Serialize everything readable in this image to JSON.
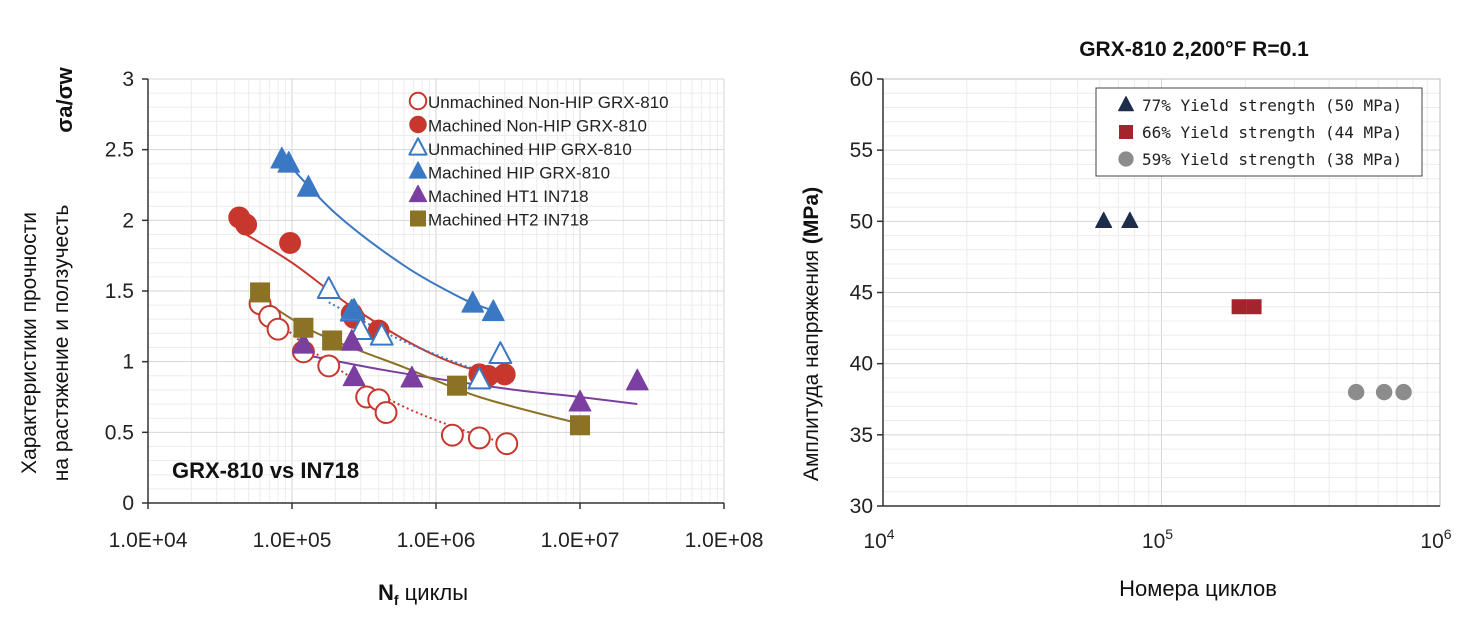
{
  "chart_data": [
    {
      "type": "scatter",
      "title": "",
      "annotation": "GRX-810 vs IN718",
      "ylabel_symbol": "σa/σw",
      "ylabel_line1": "Характеристики прочности",
      "ylabel_line2": "на растяжение и ползучесть",
      "xlabel": "Nf циклы",
      "xlabel_main": "N",
      "xlabel_sub": "f",
      "xlabel_rest": " циклы",
      "x_scale": "log",
      "xlim": [
        10000,
        100000000
      ],
      "ylim": [
        0,
        3
      ],
      "x_ticks": [
        "1.0E+04",
        "1.0E+05",
        "1.0E+06",
        "1.0E+07",
        "1.0E+08"
      ],
      "y_ticks": [
        "0",
        "0.5",
        "1",
        "1.5",
        "2",
        "2.5",
        "3"
      ],
      "grid": true,
      "legend_position": "top-right",
      "series": [
        {
          "name": "Unmachined Non-HIP GRX-810",
          "marker": "circle-open",
          "color": "#c8372d",
          "fit_style": "dotted",
          "points": [
            [
              60000,
              1.41
            ],
            [
              70000,
              1.32
            ],
            [
              80000,
              1.23
            ],
            [
              120000,
              1.07
            ],
            [
              180000,
              0.97
            ],
            [
              330000,
              0.75
            ],
            [
              400000,
              0.73
            ],
            [
              450000,
              0.64
            ],
            [
              1300000,
              0.48
            ],
            [
              2000000,
              0.46
            ],
            [
              3100000,
              0.42
            ]
          ],
          "fit": [
            [
              60000,
              1.4
            ],
            [
              150000,
              1.05
            ],
            [
              500000,
              0.72
            ],
            [
              1500000,
              0.52
            ],
            [
              3100000,
              0.42
            ]
          ]
        },
        {
          "name": "Machined Non-HIP GRX-810",
          "marker": "circle-filled",
          "color": "#c8372d",
          "fit_style": "solid",
          "points": [
            [
              43000,
              2.02
            ],
            [
              48000,
              1.97
            ],
            [
              97000,
              1.84
            ],
            [
              260000,
              1.34
            ],
            [
              270000,
              1.31
            ],
            [
              400000,
              1.22
            ],
            [
              2000000,
              0.91
            ],
            [
              2300000,
              0.9
            ],
            [
              3000000,
              0.91
            ]
          ],
          "fit": [
            [
              48000,
              1.9
            ],
            [
              100000,
              1.7
            ],
            [
              250000,
              1.4
            ],
            [
              700000,
              1.12
            ],
            [
              1500000,
              0.97
            ],
            [
              3000000,
              0.9
            ]
          ]
        },
        {
          "name": "Unmachined HIP GRX-810",
          "marker": "triangle-open",
          "color": "#3a78c3",
          "fit_style": "dotted",
          "points": [
            [
              180000,
              1.51
            ],
            [
              260000,
              1.35
            ],
            [
              300000,
              1.22
            ],
            [
              420000,
              1.18
            ],
            [
              2000000,
              0.87
            ],
            [
              2800000,
              1.05
            ]
          ],
          "fit": [
            [
              180000,
              1.42
            ],
            [
              500000,
              1.18
            ],
            [
              1500000,
              0.98
            ],
            [
              2800000,
              0.9
            ]
          ]
        },
        {
          "name": "Machined HIP GRX-810",
          "marker": "triangle-filled",
          "color": "#3a78c3",
          "fit_style": "solid",
          "points": [
            [
              85000,
              2.43
            ],
            [
              95000,
              2.4
            ],
            [
              130000,
              2.23
            ],
            [
              270000,
              1.36
            ],
            [
              1800000,
              1.41
            ],
            [
              2500000,
              1.35
            ]
          ],
          "fit": [
            [
              85000,
              2.45
            ],
            [
              200000,
              2.05
            ],
            [
              600000,
              1.68
            ],
            [
              1500000,
              1.45
            ],
            [
              2500000,
              1.36
            ]
          ]
        },
        {
          "name": "Machined HT1 IN718",
          "marker": "triangle-filled",
          "color": "#7a3fa0",
          "fit_style": "solid",
          "points": [
            [
              120000,
              1.12
            ],
            [
              260000,
              1.14
            ],
            [
              270000,
              0.89
            ],
            [
              680000,
              0.88
            ],
            [
              10000000,
              0.71
            ],
            [
              25000000,
              0.86
            ]
          ],
          "fit": [
            [
              120000,
              1.05
            ],
            [
              500000,
              0.93
            ],
            [
              3000000,
              0.81
            ],
            [
              10000000,
              0.75
            ],
            [
              25000000,
              0.7
            ]
          ]
        },
        {
          "name": "Machined HT2 IN718",
          "marker": "square-filled",
          "color": "#8b7225",
          "fit_style": "solid",
          "points": [
            [
              60000,
              1.49
            ],
            [
              120000,
              1.24
            ],
            [
              190000,
              1.15
            ],
            [
              1400000,
              0.83
            ],
            [
              10000000,
              0.55
            ]
          ],
          "fit": [
            [
              60000,
              1.45
            ],
            [
              150000,
              1.2
            ],
            [
              600000,
              0.96
            ],
            [
              2000000,
              0.75
            ],
            [
              10000000,
              0.56
            ]
          ]
        }
      ]
    },
    {
      "type": "scatter",
      "title": "GRX-810 2,200°F R=0.1",
      "ylabel": "Амплитуда напряжения",
      "ylabel_unit": " (MPa)",
      "xlabel": "Номера циклов",
      "x_scale": "log",
      "xlim": [
        10000,
        1000000
      ],
      "ylim": [
        30,
        60
      ],
      "x_ticks": [
        {
          "base": "10",
          "exp": "4"
        },
        {
          "base": "10",
          "exp": "5"
        },
        {
          "base": "10",
          "exp": "6"
        }
      ],
      "y_ticks": [
        "30",
        "35",
        "40",
        "45",
        "50",
        "55",
        "60"
      ],
      "grid": true,
      "legend_position": "top-right",
      "series": [
        {
          "name": "77% Yield strength (50 MPa)",
          "marker": "triangle-filled",
          "color": "#1f2d4d",
          "points": [
            [
              62000,
              50
            ],
            [
              77000,
              50
            ]
          ]
        },
        {
          "name": "66% Yield strength (44 MPa)",
          "marker": "square-filled",
          "color": "#a3242c",
          "points": [
            [
              190000,
              44
            ],
            [
              215000,
              44
            ]
          ]
        },
        {
          "name": "59% Yield strength (38 MPa)",
          "marker": "circle-filled",
          "color": "#8c8c8c",
          "points": [
            [
              500000,
              38
            ],
            [
              630000,
              38
            ],
            [
              740000,
              38
            ]
          ]
        }
      ]
    }
  ]
}
